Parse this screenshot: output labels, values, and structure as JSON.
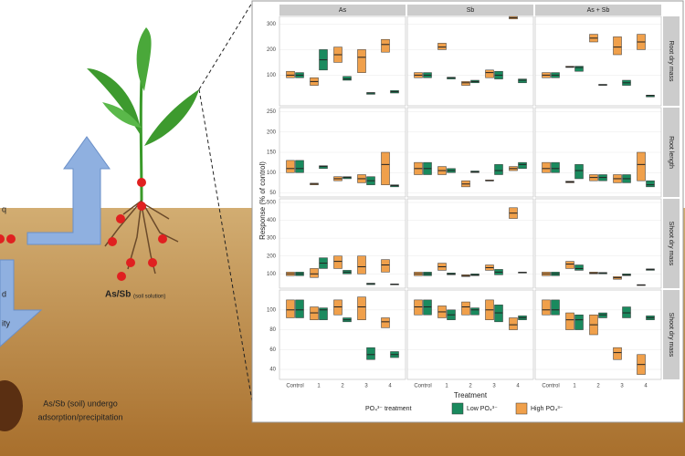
{
  "diagram": {
    "soil_solution": "As/Sb",
    "soil_solution_sub": "(soil solution)",
    "soil_line1": "As/Sb (soil) undergo",
    "soil_line2": "adsorption/precipitation",
    "cropped_1": "q",
    "cropped_2": "d",
    "cropped_3": "ity"
  },
  "chart_data": {
    "type": "box",
    "facets": [
      "As",
      "Sb",
      "As + Sb"
    ],
    "categories": [
      "Control",
      "1",
      "2",
      "3",
      "4"
    ],
    "x_label": "Treatment",
    "y_label": "Response (% of control)",
    "legend_title": "PO₄³⁻ treatment",
    "series": [
      {
        "name": "Low PO₄³⁻",
        "color": "#1a8a5e"
      },
      {
        "name": "High PO₄³⁻",
        "color": "#f0a04b"
      }
    ],
    "rows": [
      {
        "label": "Root dry mass",
        "ylim": [
          -20,
          330
        ],
        "yticks": [
          100,
          200,
          300
        ],
        "panels": [
          {
            "low": [
              [
                90,
                100,
                110
              ],
              [
                120,
                160,
                200
              ],
              [
                80,
                85,
                95
              ],
              [
                25,
                30,
                32
              ],
              [
                30,
                35,
                40
              ]
            ],
            "high": [
              [
                90,
                100,
                115
              ],
              [
                60,
                75,
                90
              ],
              [
                150,
                180,
                210
              ],
              [
                110,
                170,
                200
              ],
              [
                190,
                220,
                240
              ]
            ]
          },
          {
            "low": [
              [
                90,
                100,
                110
              ],
              [
                85,
                90,
                92
              ],
              [
                70,
                75,
                80
              ],
              [
                85,
                100,
                115
              ],
              [
                70,
                80,
                85
              ]
            ],
            "high": [
              [
                90,
                100,
                110
              ],
              [
                200,
                210,
                225
              ],
              [
                60,
                70,
                75
              ],
              [
                90,
                110,
                120
              ],
              [
                320,
                325,
                330
              ]
            ]
          },
          {
            "low": [
              [
                90,
                100,
                110
              ],
              [
                115,
                130,
                135
              ],
              [
                60,
                62,
                64
              ],
              [
                60,
                70,
                80
              ],
              [
                15,
                20,
                22
              ]
            ],
            "high": [
              [
                90,
                100,
                110
              ],
              [
                130,
                132,
                135
              ],
              [
                230,
                245,
                260
              ],
              [
                180,
                210,
                250
              ],
              [
                200,
                230,
                260
              ]
            ]
          }
        ]
      },
      {
        "label": "Root length",
        "ylim": [
          40,
          260
        ],
        "yticks": [
          50,
          100,
          150,
          200,
          250
        ],
        "panels": [
          {
            "low": [
              [
                100,
                110,
                130
              ],
              [
                110,
                115,
                117
              ],
              [
                85,
                88,
                90
              ],
              [
                70,
                80,
                90
              ],
              [
                65,
                68,
                70
              ]
            ],
            "high": [
              [
                100,
                110,
                130
              ],
              [
                70,
                72,
                74
              ],
              [
                80,
                85,
                90
              ],
              [
                75,
                85,
                95
              ],
              [
                70,
                120,
                150
              ]
            ]
          },
          {
            "low": [
              [
                95,
                110,
                125
              ],
              [
                100,
                105,
                110
              ],
              [
                100,
                102,
                104
              ],
              [
                95,
                105,
                120
              ],
              [
                110,
                120,
                125
              ]
            ],
            "high": [
              [
                95,
                110,
                125
              ],
              [
                95,
                105,
                115
              ],
              [
                65,
                72,
                80
              ],
              [
                80,
                80,
                82
              ],
              [
                105,
                110,
                115
              ]
            ]
          },
          {
            "low": [
              [
                100,
                110,
                125
              ],
              [
                85,
                105,
                120
              ],
              [
                80,
                88,
                95
              ],
              [
                75,
                85,
                95
              ],
              [
                65,
                70,
                80
              ]
            ],
            "high": [
              [
                100,
                110,
                125
              ],
              [
                75,
                77,
                79
              ],
              [
                80,
                88,
                95
              ],
              [
                75,
                85,
                95
              ],
              [
                80,
                120,
                150
              ]
            ]
          }
        ]
      },
      {
        "label": "Shoot dry mass",
        "ylim": [
          20,
          520
        ],
        "yticks": [
          100,
          200,
          300,
          400,
          500
        ],
        "panels": [
          {
            "low": [
              [
                90,
                100,
                110
              ],
              [
                130,
                160,
                190
              ],
              [
                100,
                110,
                120
              ],
              [
                40,
                45,
                48
              ],
              [
                40,
                42,
                44
              ]
            ],
            "high": [
              [
                90,
                100,
                110
              ],
              [
                80,
                100,
                130
              ],
              [
                130,
                170,
                200
              ],
              [
                100,
                140,
                200
              ],
              [
                110,
                150,
                180
              ]
            ]
          },
          {
            "low": [
              [
                90,
                100,
                110
              ],
              [
                95,
                100,
                105
              ],
              [
                90,
                95,
                100
              ],
              [
                95,
                110,
                125
              ],
              [
                105,
                108,
                110
              ]
            ],
            "high": [
              [
                90,
                100,
                110
              ],
              [
                120,
                140,
                160
              ],
              [
                85,
                90,
                95
              ],
              [
                120,
                135,
                150
              ],
              [
                410,
                440,
                470
              ]
            ]
          },
          {
            "low": [
              [
                90,
                100,
                110
              ],
              [
                120,
                130,
                150
              ],
              [
                100,
                105,
                108
              ],
              [
                90,
                95,
                100
              ],
              [
                120,
                125,
                128
              ]
            ],
            "high": [
              [
                90,
                100,
                110
              ],
              [
                130,
                155,
                170
              ],
              [
                100,
                105,
                110
              ],
              [
                70,
                78,
                85
              ],
              [
                35,
                38,
                40
              ]
            ]
          }
        ]
      },
      {
        "label": "Shoot dry mass",
        "ylim": [
          30,
          120
        ],
        "yticks": [
          40,
          60,
          80,
          100
        ],
        "panels": [
          {
            "low": [
              [
                92,
                100,
                110
              ],
              [
                90,
                100,
                102
              ],
              [
                88,
                90,
                92
              ],
              [
                50,
                55,
                62
              ],
              [
                52,
                55,
                58
              ]
            ],
            "high": [
              [
                92,
                100,
                110
              ],
              [
                90,
                97,
                103
              ],
              [
                95,
                103,
                110
              ],
              [
                90,
                103,
                113
              ],
              [
                82,
                88,
                92
              ]
            ]
          },
          {
            "low": [
              [
                95,
                103,
                110
              ],
              [
                90,
                95,
                100
              ],
              [
                95,
                100,
                102
              ],
              [
                88,
                97,
                105
              ],
              [
                90,
                92,
                94
              ]
            ],
            "high": [
              [
                95,
                103,
                110
              ],
              [
                92,
                98,
                104
              ],
              [
                95,
                103,
                108
              ],
              [
                90,
                100,
                110
              ],
              [
                80,
                85,
                92
              ]
            ]
          },
          {
            "low": [
              [
                95,
                100,
                110
              ],
              [
                80,
                90,
                95
              ],
              [
                92,
                95,
                97
              ],
              [
                92,
                97,
                103
              ],
              [
                90,
                92,
                94
              ]
            ],
            "high": [
              [
                95,
                100,
                110
              ],
              [
                80,
                90,
                97
              ],
              [
                75,
                85,
                95
              ],
              [
                50,
                57,
                62
              ],
              [
                35,
                45,
                55
              ]
            ]
          }
        ]
      }
    ]
  }
}
